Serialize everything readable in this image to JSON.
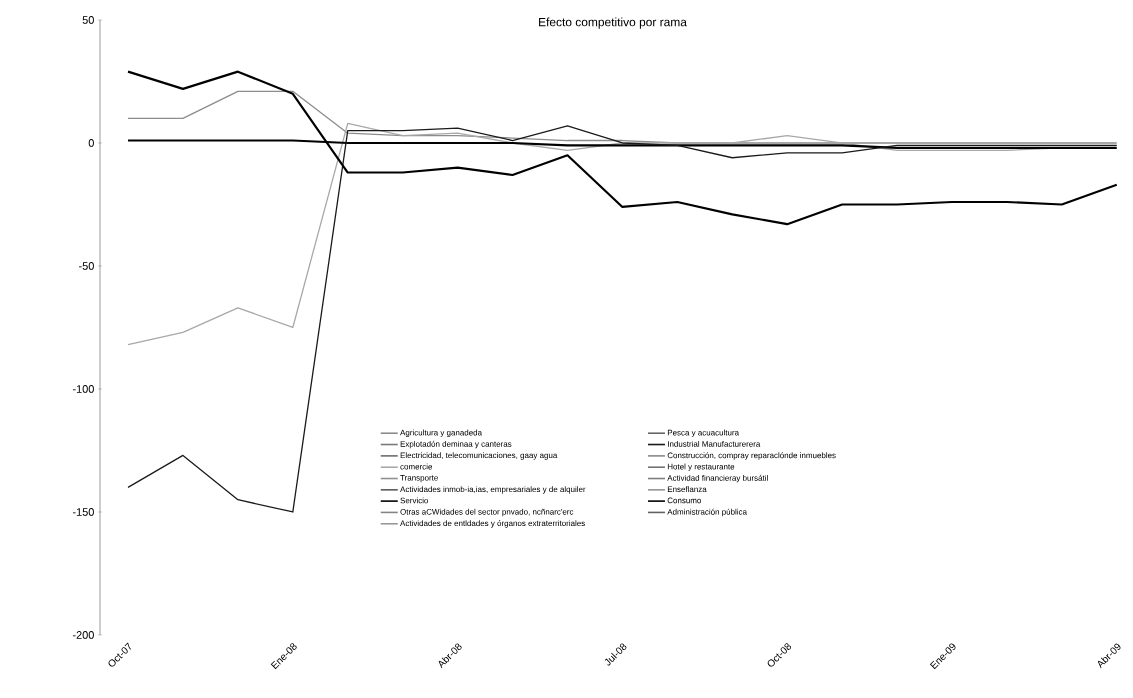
{
  "chart_data": {
    "type": "line",
    "title": "Efecto competitivo por rama",
    "categories": [
      "Oct-07",
      null,
      null,
      "Ene-08",
      null,
      null,
      "Abr-08",
      null,
      null,
      "Jul-08",
      null,
      null,
      "Oct-08",
      null,
      null,
      "Ene-09",
      null,
      null,
      "Abr-09"
    ],
    "ylim": [
      -200,
      50
    ],
    "yticks": [
      50,
      0,
      -50,
      -100,
      -150,
      -200
    ],
    "grid": false,
    "legend": "bottom",
    "marker": "none",
    "line_style": "solid",
    "series": [
      {
        "name": "Agricultura y ganadeda",
        "color": "#8c8c8c",
        "values": [
          10,
          10,
          21,
          21,
          4,
          3,
          3,
          2,
          1,
          1,
          0,
          0,
          0,
          0,
          0,
          0,
          0,
          0,
          0
        ]
      },
      {
        "name": "Explotadón deminaa y canteras",
        "color": "#7a7a7a",
        "values": [
          null,
          null,
          null,
          null,
          null,
          null,
          null,
          null,
          null,
          null,
          null,
          null,
          null,
          null,
          null,
          null,
          null,
          null,
          null
        ]
      },
      {
        "name": "Electricidad, telecomunicaciones, gaay agua",
        "color": "#6e6e6e",
        "values": [
          null,
          null,
          null,
          null,
          null,
          null,
          null,
          null,
          null,
          null,
          null,
          null,
          null,
          null,
          null,
          null,
          null,
          null,
          null
        ]
      },
      {
        "name": "comercie",
        "color": "#a8a8a8",
        "values": [
          -82,
          -77,
          -67,
          -75,
          8,
          3,
          4,
          0,
          -3,
          0,
          0,
          0,
          3,
          0,
          -3,
          -3,
          -3,
          -2,
          null
        ]
      },
      {
        "name": "Transporte",
        "color": "#909090",
        "values": [
          null,
          null,
          null,
          null,
          null,
          null,
          null,
          null,
          null,
          null,
          null,
          null,
          null,
          null,
          null,
          null,
          null,
          null,
          null
        ]
      },
      {
        "name": "Actividades inmob-ia,ias, empresariales y de alquiler",
        "color": "#5a5a5a",
        "values": [
          null,
          null,
          null,
          null,
          null,
          null,
          null,
          null,
          null,
          null,
          null,
          null,
          null,
          null,
          null,
          null,
          null,
          null,
          null
        ]
      },
      {
        "name": "Servicio",
        "color": "#000000",
        "values": [
          1,
          1,
          1,
          1,
          0,
          0,
          0,
          0,
          -1,
          -1,
          -1,
          -1,
          -1,
          -1,
          -2,
          -2,
          -2,
          -2,
          -2
        ]
      },
      {
        "name": "Otras aCWidades del sector pnvado, ncñnarc'erc",
        "color": "#848484",
        "values": [
          null,
          null,
          null,
          null,
          null,
          null,
          null,
          null,
          null,
          null,
          null,
          null,
          null,
          null,
          null,
          null,
          null,
          null,
          null
        ]
      },
      {
        "name": "Actividades de entldades y órganos extraterritoriales",
        "color": "#989898",
        "values": [
          null,
          null,
          null,
          null,
          null,
          null,
          null,
          null,
          null,
          null,
          null,
          null,
          null,
          null,
          null,
          null,
          null,
          null,
          null
        ]
      },
      {
        "name": "Pesca y acuacultura",
        "color": "#666666",
        "values": [
          null,
          null,
          null,
          null,
          null,
          null,
          null,
          null,
          null,
          null,
          null,
          null,
          null,
          null,
          null,
          null,
          null,
          null,
          null
        ]
      },
      {
        "name": "Industrial Manufacturerera",
        "color": "#1a1a1a",
        "values": [
          -140,
          -127,
          -145,
          -150,
          5,
          5,
          6,
          1,
          7,
          0,
          -1,
          -6,
          -4,
          -4,
          -1,
          -1,
          -1,
          -1,
          -1
        ]
      },
      {
        "name": "Construcción, compray reparaclónde inmuebles",
        "color": "#888888",
        "values": [
          null,
          null,
          null,
          null,
          null,
          null,
          null,
          null,
          null,
          null,
          null,
          null,
          null,
          null,
          null,
          null,
          null,
          null,
          null
        ]
      },
      {
        "name": "Hotel y restaurante",
        "color": "#727272",
        "values": [
          null,
          null,
          null,
          null,
          null,
          null,
          null,
          null,
          null,
          null,
          null,
          null,
          null,
          null,
          null,
          null,
          null,
          null,
          null
        ]
      },
      {
        "name": "Actividad financieray bursátil",
        "color": "#7e7e7e",
        "values": [
          null,
          null,
          null,
          null,
          null,
          null,
          null,
          null,
          null,
          null,
          null,
          null,
          null,
          null,
          null,
          null,
          null,
          null,
          null
        ]
      },
      {
        "name": "Enseflanza",
        "color": "#949494",
        "values": [
          null,
          null,
          null,
          null,
          null,
          null,
          null,
          null,
          null,
          null,
          null,
          null,
          null,
          null,
          null,
          null,
          null,
          null,
          null
        ]
      },
      {
        "name": "Consumo",
        "color": "#000000",
        "values": [
          29,
          22,
          29,
          20,
          -12,
          -12,
          -10,
          -13,
          -5,
          -26,
          -24,
          -29,
          -33,
          -25,
          -25,
          -24,
          -24,
          -25,
          -17
        ]
      },
      {
        "name": "Administración pública",
        "color": "#606060",
        "values": [
          null,
          null,
          null,
          null,
          null,
          null,
          null,
          null,
          null,
          null,
          null,
          null,
          null,
          null,
          null,
          null,
          null,
          null,
          null
        ]
      }
    ]
  }
}
